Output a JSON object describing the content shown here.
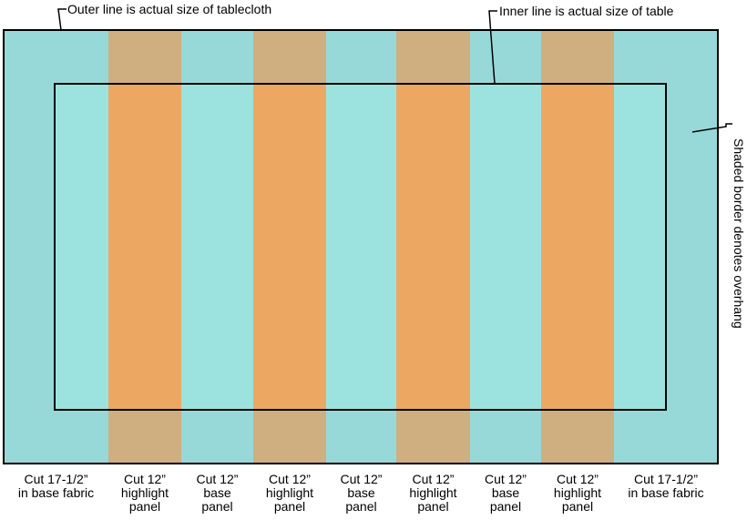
{
  "annotations": {
    "outer": "Outer line is actual size of tablecloth",
    "inner": "Inner line is actual size of table",
    "border": "Shaded border denotes overhang"
  },
  "colors": {
    "base_overhang": "#97d9d8",
    "highlight_overhang": "#cfae80",
    "base_table": "#9ce3e0",
    "highlight_table": "#eca862"
  },
  "panels": [
    {
      "type": "base",
      "l1": "Cut 17-1/2”",
      "l2": "in base fabric",
      "l3": ""
    },
    {
      "type": "highlight",
      "l1": "Cut 12”",
      "l2": "highlight",
      "l3": "panel"
    },
    {
      "type": "base",
      "l1": "Cut 12”",
      "l2": "base",
      "l3": "panel"
    },
    {
      "type": "highlight",
      "l1": "Cut 12”",
      "l2": "highlight",
      "l3": "panel"
    },
    {
      "type": "base",
      "l1": "Cut 12”",
      "l2": "base",
      "l3": "panel"
    },
    {
      "type": "highlight",
      "l1": "Cut 12”",
      "l2": "highlight",
      "l3": "panel"
    },
    {
      "type": "base",
      "l1": "Cut 12”",
      "l2": "base",
      "l3": "panel"
    },
    {
      "type": "highlight",
      "l1": "Cut 12”",
      "l2": "highlight",
      "l3": "panel"
    },
    {
      "type": "base",
      "l1": "Cut 17-1/2”",
      "l2": "in base fabric",
      "l3": ""
    }
  ]
}
